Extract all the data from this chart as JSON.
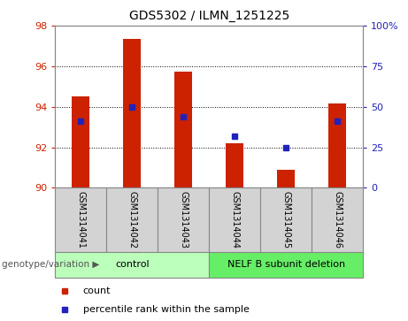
{
  "title": "GDS5302 / ILMN_1251225",
  "samples": [
    "GSM1314041",
    "GSM1314042",
    "GSM1314043",
    "GSM1314044",
    "GSM1314045",
    "GSM1314046"
  ],
  "bar_values": [
    94.5,
    97.35,
    95.75,
    92.2,
    90.9,
    94.15
  ],
  "percentile_values": [
    93.3,
    94.0,
    93.5,
    92.55,
    92.0,
    93.3
  ],
  "bar_color": "#cc2200",
  "marker_color": "#2222bb",
  "ylim_left": [
    90,
    98
  ],
  "ylim_right": [
    0,
    100
  ],
  "yticks_left": [
    90,
    92,
    94,
    96,
    98
  ],
  "yticks_right": [
    0,
    25,
    50,
    75,
    100
  ],
  "ytick_labels_right": [
    "0",
    "25",
    "50",
    "75",
    "100%"
  ],
  "groups": [
    {
      "label": "control",
      "indices": [
        0,
        1,
        2
      ],
      "color": "#bbffbb"
    },
    {
      "label": "NELF B subunit deletion",
      "indices": [
        3,
        4,
        5
      ],
      "color": "#66ee66"
    }
  ],
  "legend_items": [
    {
      "label": "count",
      "color": "#cc2200"
    },
    {
      "label": "percentile rank within the sample",
      "color": "#2222bb"
    }
  ],
  "bar_width": 0.35,
  "plot_bg_color": "#ffffff",
  "left_tick_color": "#cc2200",
  "right_tick_color": "#2222bb",
  "sample_box_color": "#d3d3d3",
  "grid_linestyle": ":"
}
